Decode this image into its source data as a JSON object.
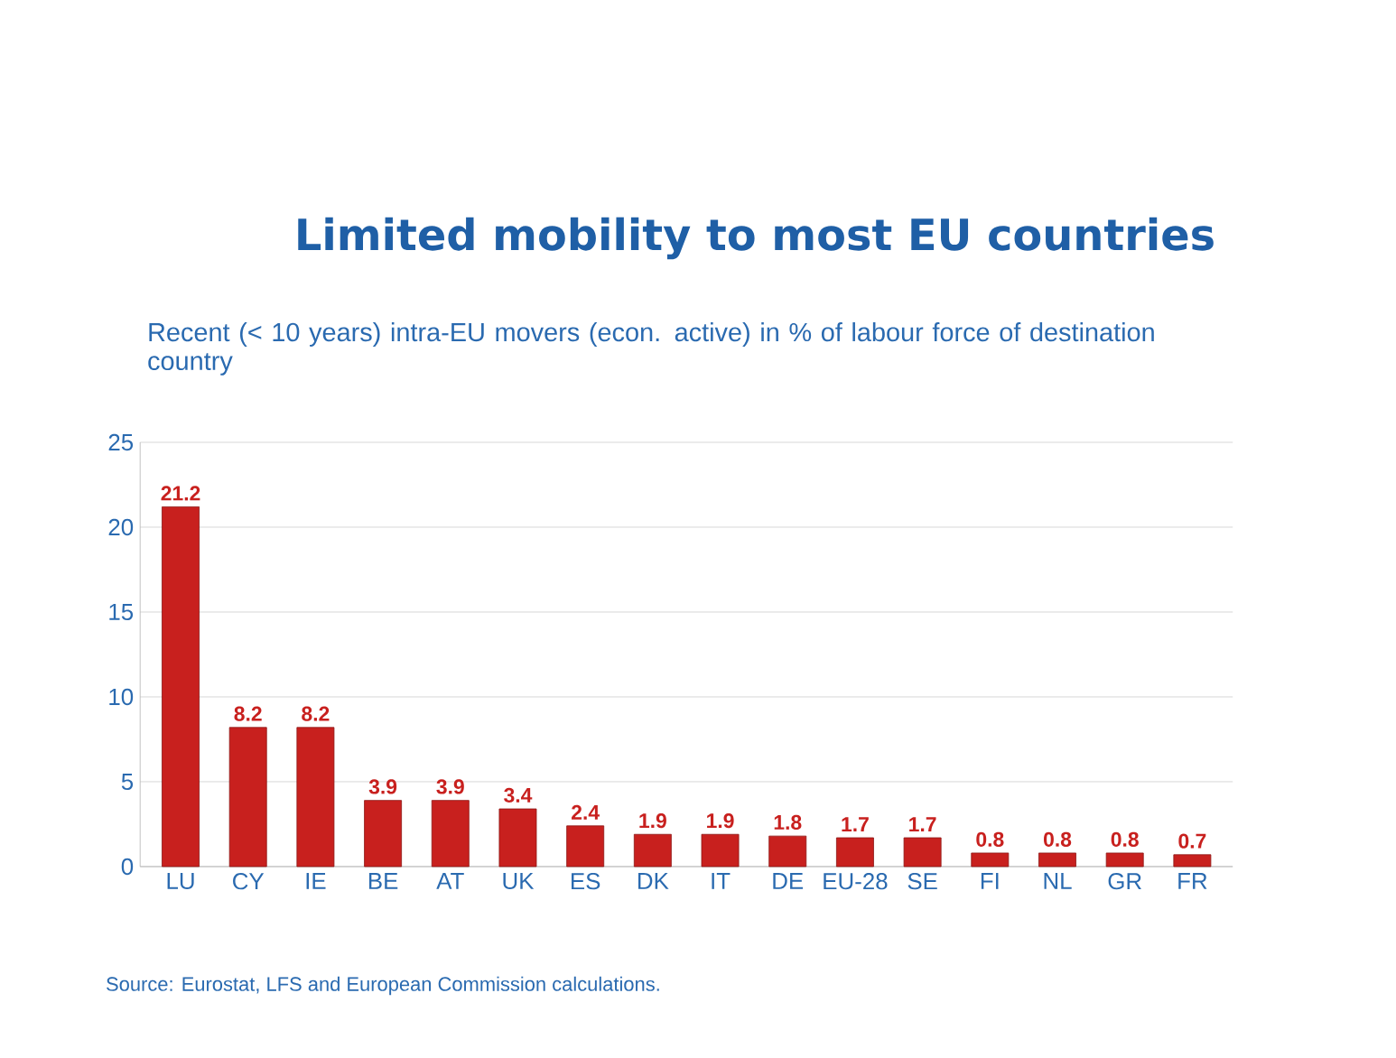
{
  "chart_data": {
    "type": "bar",
    "title": "Limited mobility to most EU countries",
    "subtitle": "Recent (< 10 years) intra-EU movers (econ. active) in % of labour force of destination country",
    "categories": [
      "LU",
      "CY",
      "IE",
      "BE",
      "AT",
      "UK",
      "ES",
      "DK",
      "IT",
      "DE",
      "EU-28",
      "SE",
      "FI",
      "NL",
      "GR",
      "FR"
    ],
    "values": [
      21.2,
      8.2,
      8.2,
      3.9,
      3.9,
      3.4,
      2.4,
      1.9,
      1.9,
      1.8,
      1.7,
      1.7,
      0.8,
      0.8,
      0.8,
      0.7
    ],
    "color": "#c8201e",
    "ylim": [
      0,
      25
    ],
    "yticks": [
      0,
      5,
      10,
      15,
      20,
      25
    ],
    "grid": "y",
    "data_labels": true,
    "annotations": [
      "Source: Eurostat, LFS and European Commission calculations."
    ]
  }
}
